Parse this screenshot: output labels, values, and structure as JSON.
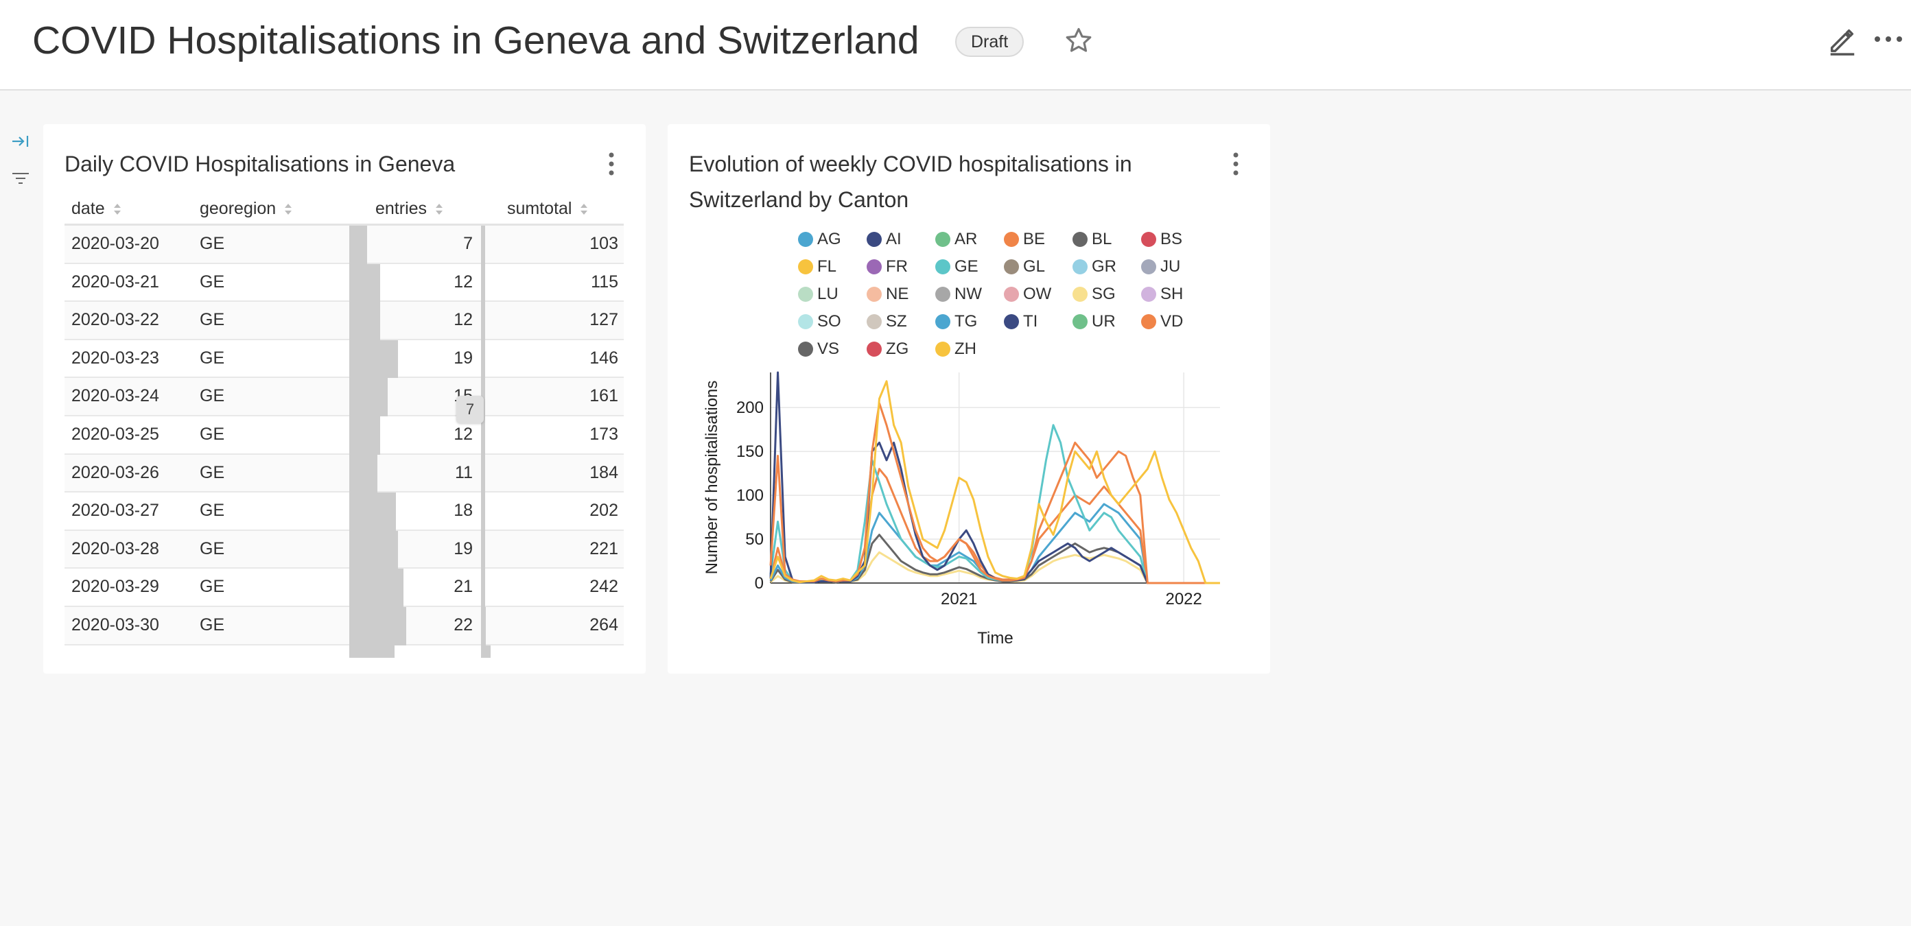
{
  "header": {
    "title": "COVID Hospitalisations in Geneva and Switzerland",
    "badge": "Draft"
  },
  "table_card": {
    "title": "Daily COVID Hospitalisations in Geneva",
    "columns": [
      "date",
      "georegion",
      "entries",
      "sumtotal"
    ],
    "rows": [
      {
        "date": "2020-03-20",
        "georegion": "GE",
        "entries": 7,
        "sumtotal": 103
      },
      {
        "date": "2020-03-21",
        "georegion": "GE",
        "entries": 12,
        "sumtotal": 115
      },
      {
        "date": "2020-03-22",
        "georegion": "GE",
        "entries": 12,
        "sumtotal": 127
      },
      {
        "date": "2020-03-23",
        "georegion": "GE",
        "entries": 19,
        "sumtotal": 146
      },
      {
        "date": "2020-03-24",
        "georegion": "GE",
        "entries": 15,
        "sumtotal": 161
      },
      {
        "date": "2020-03-25",
        "georegion": "GE",
        "entries": 12,
        "sumtotal": 173
      },
      {
        "date": "2020-03-26",
        "georegion": "GE",
        "entries": 11,
        "sumtotal": 184
      },
      {
        "date": "2020-03-27",
        "georegion": "GE",
        "entries": 18,
        "sumtotal": 202
      },
      {
        "date": "2020-03-28",
        "georegion": "GE",
        "entries": 19,
        "sumtotal": 221
      },
      {
        "date": "2020-03-29",
        "georegion": "GE",
        "entries": 21,
        "sumtotal": 242
      },
      {
        "date": "2020-03-30",
        "georegion": "GE",
        "entries": 22,
        "sumtotal": 264
      }
    ],
    "tooltip": "7"
  },
  "chart_card": {
    "title": "Evolution of weekly COVID hospitalisations in Switzerland by Canton"
  },
  "chart_data": {
    "type": "line",
    "title": "Evolution of weekly COVID hospitalisations in Switzerland by Canton",
    "xlabel": "Time",
    "ylabel": "Number of hospitalisations",
    "x_ticks": [
      "2021",
      "2022"
    ],
    "y_ticks": [
      0,
      50,
      100,
      150,
      200
    ],
    "ylim": [
      0,
      240
    ],
    "grid": true,
    "legend_position": "top",
    "series_names": [
      "AG",
      "AI",
      "AR",
      "BE",
      "BL",
      "BS",
      "FL",
      "FR",
      "GE",
      "GL",
      "GR",
      "JU",
      "LU",
      "NE",
      "NW",
      "OW",
      "SG",
      "SH",
      "SO",
      "SZ",
      "TG",
      "TI",
      "UR",
      "VD",
      "VS",
      "ZG",
      "ZH"
    ],
    "colors": [
      "#4ba6d0",
      "#3b4a82",
      "#6fc08a",
      "#f08448",
      "#666666",
      "#d64e5b",
      "#f7c33e",
      "#9b68b5",
      "#5cc6c8",
      "#9a8c7c",
      "#95d0e4",
      "#a3a8ba",
      "#b9ddc4",
      "#f5bca0",
      "#a7a7a7",
      "#e6a6ad",
      "#f8e08f",
      "#d1b3de",
      "#b3e5e6",
      "#d0c7bd",
      "#4ba6d0",
      "#3b4a82",
      "#6fc08a",
      "#f08448",
      "#666666",
      "#d64e5b",
      "#f7c33e"
    ],
    "x_weeks": [
      0,
      2,
      4,
      6,
      8,
      10,
      12,
      14,
      16,
      18,
      20,
      22,
      24,
      26,
      28,
      30,
      32,
      34,
      36,
      38,
      40,
      42,
      44,
      46,
      48,
      50,
      52,
      54,
      56,
      58,
      60,
      62,
      64,
      66,
      68,
      70,
      72,
      74,
      76,
      78,
      80,
      82,
      84,
      86,
      88,
      90,
      92,
      94,
      96,
      98,
      100,
      102,
      104,
      106,
      108,
      110,
      112,
      114,
      116,
      118,
      120,
      122,
      124
    ],
    "series": [
      {
        "name": "ZH",
        "values": [
          5,
          30,
          8,
          3,
          1,
          2,
          3,
          8,
          4,
          3,
          5,
          3,
          12,
          20,
          100,
          210,
          230,
          180,
          160,
          110,
          80,
          50,
          45,
          40,
          60,
          90,
          120,
          115,
          95,
          60,
          30,
          12,
          8,
          6,
          5,
          8,
          40,
          90,
          70,
          55,
          80,
          120,
          150,
          140,
          130,
          150,
          120,
          100,
          90,
          100,
          110,
          120,
          130,
          150,
          120,
          95,
          80,
          60,
          40,
          25,
          0,
          0,
          0
        ]
      },
      {
        "name": "VD",
        "values": [
          20,
          145,
          10,
          4,
          2,
          2,
          2,
          5,
          3,
          2,
          3,
          3,
          10,
          40,
          150,
          205,
          180,
          150,
          120,
          90,
          60,
          40,
          30,
          25,
          30,
          40,
          50,
          45,
          30,
          15,
          8,
          5,
          3,
          3,
          4,
          6,
          25,
          60,
          80,
          100,
          120,
          140,
          160,
          150,
          140,
          120,
          130,
          140,
          150,
          145,
          120,
          100,
          0,
          0,
          0,
          0,
          0,
          0,
          0,
          0,
          0,
          0,
          0
        ]
      },
      {
        "name": "TI",
        "values": [
          5,
          240,
          30,
          4,
          1,
          1,
          1,
          2,
          2,
          2,
          2,
          2,
          8,
          25,
          150,
          160,
          140,
          160,
          130,
          90,
          55,
          30,
          20,
          15,
          20,
          35,
          50,
          60,
          45,
          25,
          10,
          5,
          3,
          3,
          3,
          5,
          15,
          25,
          30,
          35,
          40,
          45,
          40,
          30,
          25,
          30,
          35,
          40,
          35,
          30,
          25,
          20,
          0,
          0,
          0,
          0,
          0,
          0,
          0,
          0,
          0,
          0,
          0
        ]
      },
      {
        "name": "GE",
        "values": [
          10,
          70,
          15,
          3,
          1,
          1,
          1,
          3,
          3,
          2,
          3,
          3,
          15,
          70,
          140,
          115,
          90,
          70,
          50,
          40,
          30,
          25,
          20,
          18,
          20,
          25,
          30,
          28,
          20,
          12,
          6,
          4,
          3,
          3,
          4,
          8,
          35,
          90,
          140,
          180,
          160,
          120,
          100,
          80,
          60,
          70,
          80,
          75,
          60,
          50,
          40,
          30,
          0,
          0,
          0,
          0,
          0,
          0,
          0,
          0,
          0,
          0,
          0
        ]
      },
      {
        "name": "BE",
        "values": [
          5,
          40,
          10,
          3,
          1,
          1,
          1,
          3,
          3,
          2,
          3,
          3,
          10,
          40,
          100,
          130,
          120,
          100,
          80,
          60,
          40,
          30,
          25,
          25,
          30,
          40,
          50,
          45,
          35,
          20,
          10,
          6,
          4,
          4,
          5,
          8,
          25,
          50,
          60,
          70,
          80,
          90,
          100,
          95,
          90,
          100,
          110,
          100,
          90,
          80,
          70,
          60,
          0,
          0,
          0,
          0,
          0,
          0,
          0,
          0,
          0,
          0,
          0
        ]
      },
      {
        "name": "AG",
        "values": [
          3,
          20,
          6,
          2,
          1,
          1,
          1,
          3,
          2,
          2,
          2,
          2,
          6,
          20,
          60,
          80,
          70,
          60,
          50,
          40,
          30,
          25,
          20,
          20,
          25,
          30,
          35,
          30,
          25,
          15,
          8,
          5,
          3,
          3,
          4,
          6,
          15,
          30,
          40,
          50,
          60,
          70,
          80,
          75,
          70,
          80,
          90,
          85,
          80,
          70,
          60,
          50,
          0,
          0,
          0,
          0,
          0,
          0,
          0,
          0,
          0,
          0,
          0
        ]
      },
      {
        "name": "VS",
        "values": [
          2,
          15,
          4,
          1,
          1,
          1,
          1,
          2,
          2,
          1,
          2,
          2,
          4,
          15,
          45,
          55,
          45,
          35,
          25,
          20,
          15,
          12,
          10,
          10,
          12,
          15,
          18,
          16,
          12,
          8,
          5,
          3,
          2,
          2,
          3,
          4,
          10,
          20,
          25,
          30,
          35,
          40,
          45,
          40,
          35,
          38,
          40,
          38,
          35,
          30,
          25,
          20,
          0,
          0,
          0,
          0,
          0,
          0,
          0,
          0,
          0,
          0,
          0
        ]
      },
      {
        "name": "SG",
        "values": [
          1,
          8,
          3,
          1,
          1,
          1,
          1,
          2,
          2,
          1,
          2,
          2,
          3,
          10,
          25,
          35,
          30,
          25,
          20,
          15,
          12,
          10,
          8,
          8,
          10,
          12,
          14,
          12,
          10,
          6,
          4,
          3,
          2,
          2,
          2,
          3,
          8,
          15,
          20,
          25,
          28,
          30,
          32,
          30,
          28,
          30,
          32,
          30,
          28,
          25,
          20,
          15,
          0,
          0,
          0,
          0,
          0,
          0,
          0,
          0,
          0,
          0,
          0
        ]
      }
    ]
  }
}
